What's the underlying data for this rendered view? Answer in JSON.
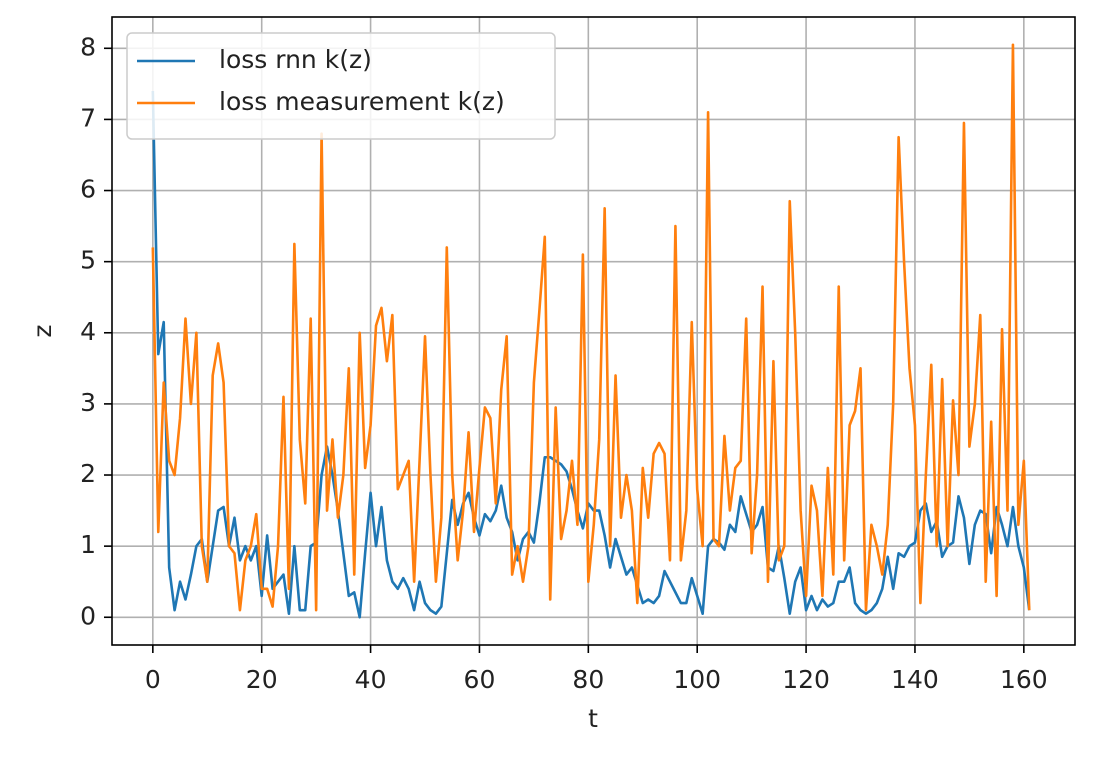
{
  "chart_data": {
    "type": "line",
    "xlabel": "t",
    "ylabel": "z",
    "x": [
      0,
      1,
      2,
      3,
      4,
      5,
      6,
      7,
      8,
      9,
      10,
      11,
      12,
      13,
      14,
      15,
      16,
      17,
      18,
      19,
      20,
      21,
      22,
      23,
      24,
      25,
      26,
      27,
      28,
      29,
      30,
      31,
      32,
      33,
      34,
      35,
      36,
      37,
      38,
      39,
      40,
      41,
      42,
      43,
      44,
      45,
      46,
      47,
      48,
      49,
      50,
      51,
      52,
      53,
      54,
      55,
      56,
      57,
      58,
      59,
      60,
      61,
      62,
      63,
      64,
      65,
      66,
      67,
      68,
      69,
      70,
      71,
      72,
      73,
      74,
      75,
      76,
      77,
      78,
      79,
      80,
      81,
      82,
      83,
      84,
      85,
      86,
      87,
      88,
      89,
      90,
      91,
      92,
      93,
      94,
      95,
      96,
      97,
      98,
      99,
      100,
      101,
      102,
      103,
      104,
      105,
      106,
      107,
      108,
      109,
      110,
      111,
      112,
      113,
      114,
      115,
      116,
      117,
      118,
      119,
      120,
      121,
      122,
      123,
      124,
      125,
      126,
      127,
      128,
      129,
      130,
      131,
      132,
      133,
      134,
      135,
      136,
      137,
      138,
      139,
      140,
      141,
      142,
      143,
      144,
      145,
      146,
      147,
      148,
      149,
      150,
      151,
      152,
      153,
      154,
      155,
      156,
      157,
      158,
      159,
      160,
      161
    ],
    "series": [
      {
        "name": "loss rnn k(z)",
        "color": "#1f77b4",
        "values": [
          7.4,
          3.7,
          4.15,
          0.7,
          0.1,
          0.5,
          0.25,
          0.6,
          1.0,
          1.1,
          0.5,
          1.0,
          1.5,
          1.55,
          1.0,
          1.4,
          0.8,
          1.0,
          0.8,
          1.0,
          0.3,
          1.15,
          0.4,
          0.5,
          0.6,
          0.05,
          1.0,
          0.1,
          0.1,
          1.0,
          1.05,
          2.0,
          2.4,
          2.0,
          1.5,
          0.9,
          0.3,
          0.35,
          0.0,
          0.9,
          1.75,
          1.0,
          1.55,
          0.8,
          0.5,
          0.4,
          0.55,
          0.4,
          0.1,
          0.5,
          0.2,
          0.1,
          0.05,
          0.15,
          0.9,
          1.65,
          1.3,
          1.6,
          1.75,
          1.4,
          1.15,
          1.45,
          1.35,
          1.5,
          1.85,
          1.4,
          1.2,
          0.8,
          1.1,
          1.2,
          1.05,
          1.6,
          2.25,
          2.25,
          2.2,
          2.15,
          2.05,
          1.8,
          1.5,
          1.25,
          1.6,
          1.5,
          1.5,
          1.15,
          0.7,
          1.1,
          0.85,
          0.6,
          0.7,
          0.45,
          0.2,
          0.25,
          0.2,
          0.3,
          0.65,
          0.5,
          0.35,
          0.2,
          0.2,
          0.55,
          0.3,
          0.05,
          1.0,
          1.1,
          1.05,
          0.95,
          1.3,
          1.2,
          1.7,
          1.45,
          1.2,
          1.3,
          1.55,
          0.7,
          0.65,
          1.0,
          0.55,
          0.05,
          0.5,
          0.7,
          0.1,
          0.3,
          0.1,
          0.25,
          0.15,
          0.2,
          0.5,
          0.5,
          0.7,
          0.2,
          0.1,
          0.05,
          0.1,
          0.2,
          0.4,
          0.85,
          0.4,
          0.9,
          0.85,
          1.0,
          1.05,
          1.5,
          1.6,
          1.2,
          1.35,
          0.85,
          1.0,
          1.05,
          1.7,
          1.4,
          0.75,
          1.3,
          1.5,
          1.45,
          0.9,
          1.55,
          1.3,
          1.0,
          1.55,
          1.0,
          0.7,
          0.1
        ]
      },
      {
        "name": "loss measurement k(z)",
        "color": "#ff7f0e",
        "values": [
          5.2,
          1.2,
          3.3,
          2.2,
          2.0,
          2.8,
          4.2,
          3.0,
          4.0,
          1.0,
          0.5,
          3.4,
          3.85,
          3.3,
          1.0,
          0.9,
          0.1,
          0.8,
          1.0,
          1.45,
          0.4,
          0.4,
          0.15,
          1.0,
          3.1,
          0.4,
          5.25,
          2.5,
          1.6,
          4.2,
          0.1,
          6.8,
          1.5,
          2.5,
          1.4,
          2.0,
          3.5,
          0.6,
          4.0,
          2.1,
          2.7,
          4.1,
          4.35,
          3.6,
          4.25,
          1.8,
          2.0,
          2.2,
          0.5,
          2.2,
          3.95,
          2.0,
          0.5,
          1.4,
          5.2,
          2.0,
          0.8,
          1.5,
          2.6,
          1.2,
          2.1,
          2.95,
          2.8,
          1.6,
          3.2,
          3.95,
          0.6,
          1.0,
          0.5,
          1.0,
          3.3,
          4.3,
          5.35,
          0.25,
          2.95,
          1.1,
          1.5,
          2.2,
          1.3,
          5.1,
          0.5,
          1.3,
          2.5,
          5.75,
          1.0,
          3.4,
          1.4,
          2.0,
          1.5,
          0.2,
          2.1,
          1.4,
          2.3,
          2.45,
          2.3,
          0.8,
          5.5,
          0.8,
          1.5,
          4.15,
          1.8,
          1.0,
          7.1,
          1.1,
          1.0,
          2.55,
          1.5,
          2.1,
          2.2,
          4.2,
          0.9,
          2.0,
          4.65,
          0.5,
          3.6,
          0.8,
          1.0,
          5.85,
          4.0,
          1.5,
          0.3,
          1.85,
          1.5,
          0.3,
          2.1,
          0.6,
          4.65,
          0.8,
          2.7,
          2.9,
          3.5,
          0.1,
          1.3,
          1.0,
          0.6,
          1.3,
          3.0,
          6.75,
          5.0,
          3.5,
          2.7,
          0.2,
          2.0,
          3.55,
          1.0,
          3.35,
          1.0,
          3.05,
          2.0,
          6.95,
          2.4,
          3.0,
          4.25,
          0.5,
          2.75,
          0.3,
          4.05,
          1.5,
          8.05,
          1.3,
          2.2,
          0.1
        ]
      }
    ],
    "xlim": [
      -7.5,
      169.4
    ],
    "ylim": [
      -0.39,
      8.44
    ],
    "xticks": [
      0,
      20,
      40,
      60,
      80,
      100,
      120,
      140,
      160
    ],
    "yticks": [
      0,
      1,
      2,
      3,
      4,
      5,
      6,
      7,
      8
    ],
    "grid": true,
    "legend": "upper left"
  }
}
